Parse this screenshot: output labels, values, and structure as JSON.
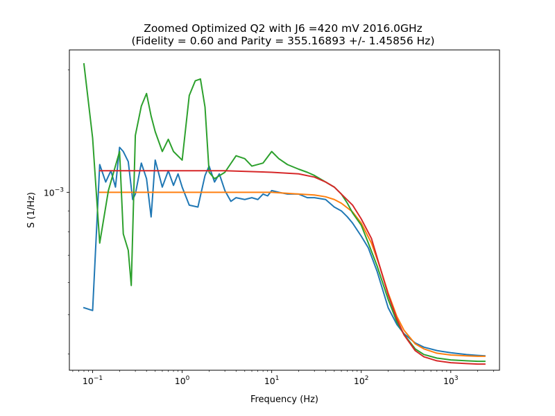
{
  "chart_data": {
    "type": "line",
    "title": [
      "Zoomed Optimized Q2 with J6 =420 mV 2016.0GHz",
      "(Fidelity = 0.60 and Parity = 355.16893 +/- 1.45856 Hz)"
    ],
    "xlabel": "Frequency (Hz)",
    "ylabel": "S (1/Hz)",
    "xscale": "log",
    "yscale": "log",
    "xlim": [
      0.055,
      3500
    ],
    "ylim": [
      0.000365,
      0.00224
    ],
    "grid": false,
    "x_ticks": [
      {
        "value": 0.1,
        "label": "10",
        "exp": "−1"
      },
      {
        "value": 1,
        "label": "10",
        "exp": "0"
      },
      {
        "value": 10,
        "label": "10",
        "exp": "1"
      },
      {
        "value": 100,
        "label": "10",
        "exp": "2"
      },
      {
        "value": 1000,
        "label": "10",
        "exp": "3"
      }
    ],
    "y_ticks": [
      {
        "value": 0.001,
        "label": "10",
        "exp": "−3"
      }
    ],
    "series": [
      {
        "color": "#1f77b4",
        "x": [
          0.08,
          0.1,
          0.12,
          0.14,
          0.16,
          0.18,
          0.2,
          0.22,
          0.25,
          0.28,
          0.3,
          0.35,
          0.4,
          0.45,
          0.5,
          0.6,
          0.7,
          0.8,
          0.9,
          1.0,
          1.2,
          1.5,
          1.8,
          2.0,
          2.3,
          2.6,
          3.0,
          3.5,
          4.0,
          5.0,
          6.0,
          7.0,
          8.0,
          9.0,
          10,
          12,
          15,
          20,
          25,
          30,
          40,
          50,
          60,
          70,
          80,
          100,
          120,
          150,
          200,
          250,
          300,
          400,
          500,
          700,
          1000,
          1500,
          2000,
          2400
        ],
        "y": [
          0.00052,
          0.000512,
          0.00117,
          0.00106,
          0.00113,
          0.00103,
          0.00129,
          0.00126,
          0.00119,
          0.00096,
          0.00099,
          0.00118,
          0.00108,
          0.00087,
          0.0012,
          0.00103,
          0.00113,
          0.00104,
          0.00111,
          0.00103,
          0.00093,
          0.00092,
          0.0011,
          0.00116,
          0.00106,
          0.00111,
          0.00101,
          0.00095,
          0.00097,
          0.00096,
          0.00097,
          0.00096,
          0.00099,
          0.00098,
          0.00101,
          0.001,
          0.00099,
          0.00099,
          0.00097,
          0.00097,
          0.00096,
          0.00092,
          0.0009,
          0.00087,
          0.00084,
          0.00078,
          0.00073,
          0.00064,
          0.00052,
          0.000473,
          0.000449,
          0.000426,
          0.000416,
          0.000408,
          0.000403,
          0.000399,
          0.000397,
          0.000396
        ]
      },
      {
        "color": "#ff7f0e",
        "x": [
          0.12,
          0.3,
          1,
          3,
          10,
          20,
          30,
          40,
          50,
          60,
          80,
          100,
          130,
          160,
          200,
          250,
          300,
          400,
          500,
          700,
          1000,
          1500,
          2000,
          2400
        ],
        "y": [
          0.001,
          0.001,
          0.001,
          0.001,
          0.001,
          0.00099,
          0.000985,
          0.000975,
          0.00096,
          0.00094,
          0.000895,
          0.00084,
          0.00075,
          0.00066,
          0.000565,
          0.000495,
          0.000458,
          0.000424,
          0.000412,
          0.000402,
          0.000398,
          0.000396,
          0.000395,
          0.000395
        ]
      },
      {
        "color": "#2ca02c",
        "x": [
          0.08,
          0.1,
          0.12,
          0.15,
          0.2,
          0.22,
          0.25,
          0.27,
          0.3,
          0.35,
          0.4,
          0.45,
          0.5,
          0.6,
          0.7,
          0.8,
          1.0,
          1.2,
          1.4,
          1.6,
          1.8,
          2.0,
          2.3,
          3.0,
          4.0,
          5.0,
          6.0,
          8.0,
          10,
          12,
          15,
          20,
          25,
          30,
          40,
          50,
          60,
          70,
          80,
          100,
          120,
          150,
          200,
          250,
          300,
          400,
          500,
          700,
          1000,
          1500,
          2000,
          2400
        ],
        "y": [
          0.00207,
          0.00136,
          0.00075,
          0.00101,
          0.00126,
          0.00079,
          0.00072,
          0.00059,
          0.00138,
          0.00163,
          0.00175,
          0.00154,
          0.00141,
          0.00126,
          0.00135,
          0.00126,
          0.0012,
          0.00173,
          0.00188,
          0.0019,
          0.00162,
          0.00112,
          0.00108,
          0.00112,
          0.00123,
          0.00121,
          0.00116,
          0.00118,
          0.00126,
          0.00121,
          0.00117,
          0.00114,
          0.00112,
          0.0011,
          0.00106,
          0.00103,
          0.00099,
          0.00094,
          0.00089,
          0.00083,
          0.00075,
          0.00066,
          0.000545,
          0.00048,
          0.000447,
          0.000412,
          0.000399,
          0.000391,
          0.000387,
          0.000385,
          0.000384,
          0.000384
        ]
      },
      {
        "color": "#d62728",
        "x": [
          0.12,
          0.3,
          1,
          3,
          10,
          20,
          30,
          40,
          50,
          60,
          80,
          100,
          130,
          160,
          200,
          250,
          300,
          400,
          500,
          700,
          1000,
          1500,
          2000,
          2400
        ],
        "y": [
          0.00113,
          0.00113,
          0.00113,
          0.00113,
          0.00112,
          0.00111,
          0.00109,
          0.00106,
          0.00103,
          0.00099,
          0.00093,
          0.00086,
          0.00077,
          0.00066,
          0.00056,
          0.000488,
          0.000446,
          0.000408,
          0.000394,
          0.000385,
          0.000381,
          0.000379,
          0.000378,
          0.000378
        ]
      }
    ]
  }
}
